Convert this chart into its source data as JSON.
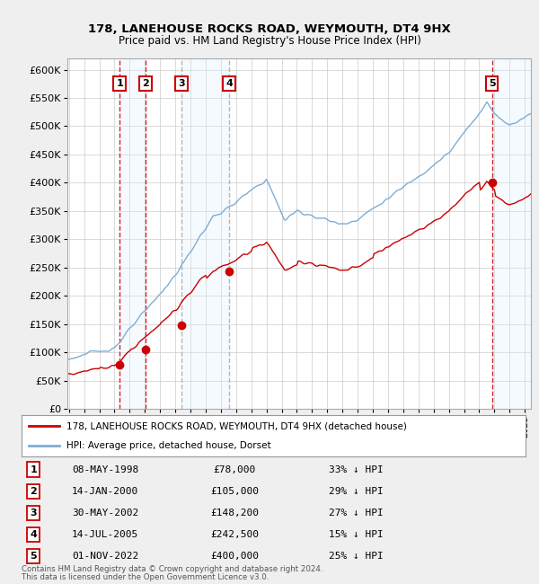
{
  "title1": "178, LANEHOUSE ROCKS ROAD, WEYMOUTH, DT4 9HX",
  "title2": "Price paid vs. HM Land Registry's House Price Index (HPI)",
  "ylim": [
    0,
    620000
  ],
  "yticks": [
    0,
    50000,
    100000,
    150000,
    200000,
    250000,
    300000,
    350000,
    400000,
    450000,
    500000,
    550000,
    600000
  ],
  "xlim_start": 1994.9,
  "xlim_end": 2025.4,
  "sale_dates_num": [
    1998.354,
    2000.038,
    2002.413,
    2005.536,
    2022.833
  ],
  "sale_prices": [
    78000,
    105000,
    148200,
    242500,
    400000
  ],
  "sale_labels": [
    "1",
    "2",
    "3",
    "4",
    "5"
  ],
  "sale_pct": [
    "33% ↓ HPI",
    "29% ↓ HPI",
    "27% ↓ HPI",
    "15% ↓ HPI",
    "25% ↓ HPI"
  ],
  "sale_dates_str": [
    "08-MAY-1998",
    "14-JAN-2000",
    "30-MAY-2002",
    "14-JUL-2005",
    "01-NOV-2022"
  ],
  "hpi_color": "#7eadd4",
  "sale_color": "#cc0000",
  "box_color": "#cc0000",
  "shade_color": "#ddeeff",
  "vline_red_color": "#cc0000",
  "vline_grey_color": "#aaaaaa",
  "legend1": "178, LANEHOUSE ROCKS ROAD, WEYMOUTH, DT4 9HX (detached house)",
  "legend2": "HPI: Average price, detached house, Dorset",
  "footer1": "Contains HM Land Registry data © Crown copyright and database right 2024.",
  "footer2": "This data is licensed under the Open Government Licence v3.0.",
  "background_color": "#efefef",
  "plot_bg_color": "#ffffff",
  "grid_color": "#cccccc"
}
